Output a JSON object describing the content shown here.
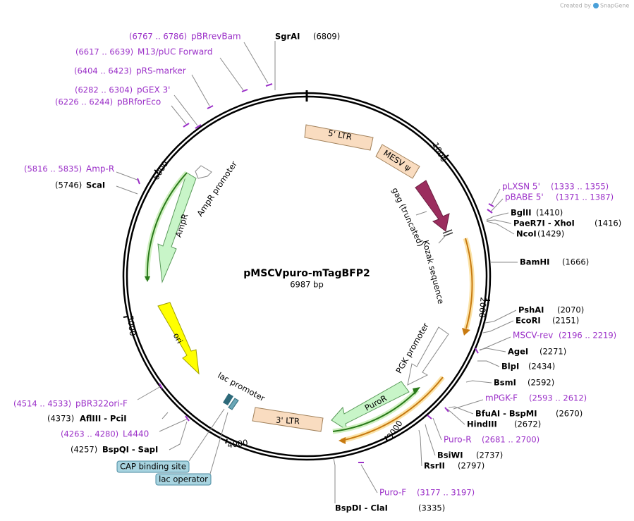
{
  "watermark": {
    "prefix": "Created by",
    "brand": "SnapGene"
  },
  "plasmid": {
    "name": "pMSCVpuro-mTagBFP2",
    "length": "6987 bp"
  },
  "ruler_ticks": [
    "1000",
    "2000",
    "3000",
    "4000",
    "5000",
    "6000"
  ],
  "enzymes": [
    {
      "name": "SgrAI",
      "position": "(6809)"
    },
    {
      "name": "ScaI",
      "position": "(5746)"
    },
    {
      "name": "BglII",
      "position": "(1410)"
    },
    {
      "name": "PaeR7I - XhoI",
      "position": "(1416)"
    },
    {
      "name": "NcoI",
      "position": "(1429)"
    },
    {
      "name": "BamHI",
      "position": "(1666)"
    },
    {
      "name": "PshAI",
      "position": "(2070)"
    },
    {
      "name": "EcoRI",
      "position": "(2151)"
    },
    {
      "name": "AgeI",
      "position": "(2271)"
    },
    {
      "name": "BlpI",
      "position": "(2434)"
    },
    {
      "name": "BsmI",
      "position": "(2592)"
    },
    {
      "name": "BfuAI - BspMI",
      "position": "(2670)"
    },
    {
      "name": "HindIII",
      "position": "(2672)"
    },
    {
      "name": "BsiWI",
      "position": "(2737)"
    },
    {
      "name": "RsrII",
      "position": "(2797)"
    },
    {
      "name": "BspDI - ClaI",
      "position": "(3335)"
    },
    {
      "name": "AflIII - PciI",
      "position": "(4373)"
    },
    {
      "name": "BspQI - SapI",
      "position": "(4257)"
    }
  ],
  "primers": [
    {
      "name": "pBRrevBam",
      "range": "(6767 .. 6786)"
    },
    {
      "name": "M13/pUC Forward",
      "range": "(6617 .. 6639)"
    },
    {
      "name": "pRS-marker",
      "range": "(6404 .. 6423)"
    },
    {
      "name": "pGEX 3'",
      "range": "(6282 .. 6304)"
    },
    {
      "name": "pBRforEco",
      "range": "(6226 .. 6244)"
    },
    {
      "name": "Amp-R",
      "range": "(5816 .. 5835)"
    },
    {
      "name": "pLXSN 5'",
      "range": "(1333 .. 1355)"
    },
    {
      "name": "pBABE 5'",
      "range": "(1371 .. 1387)"
    },
    {
      "name": "MSCV-rev",
      "range": "(2196 .. 2219)"
    },
    {
      "name": "mPGK-F",
      "range": "(2593 .. 2612)"
    },
    {
      "name": "Puro-R",
      "range": "(2681 .. 2700)"
    },
    {
      "name": "Puro-F",
      "range": "(3177 .. 3197)"
    },
    {
      "name": "pBR322ori-F",
      "range": "(4514 .. 4533)"
    },
    {
      "name": "L4440",
      "range": "(4263 .. 4280)"
    }
  ],
  "features": [
    "5' LTR",
    "MESV ψ",
    "gag (truncated)",
    "Kozak sequence",
    "PGK promoter",
    "PuroR",
    "3' LTR",
    "lac promoter",
    "ori",
    "AmpR",
    "AmpR promoter"
  ],
  "boxed_features": [
    "CAP binding site",
    "lac operator"
  ]
}
